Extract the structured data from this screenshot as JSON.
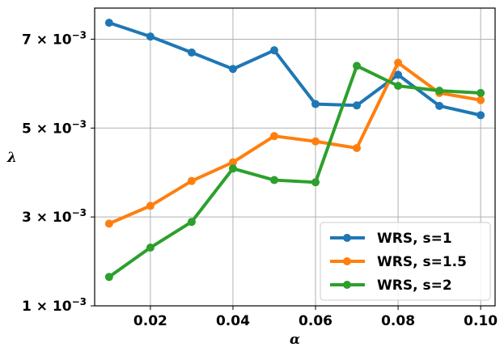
{
  "chart_data": {
    "type": "line",
    "xlabel": "α",
    "ylabel": "λ",
    "xlim": [
      0.0065,
      0.1035
    ],
    "ylim": [
      0.001,
      0.0077
    ],
    "x": [
      0.01,
      0.02,
      0.03,
      0.04,
      0.05,
      0.06,
      0.07,
      0.08,
      0.09,
      0.1
    ],
    "x_tick_values": [
      0.02,
      0.04,
      0.06,
      0.08,
      0.1
    ],
    "x_ticks": [
      "0.02",
      "0.04",
      "0.06",
      "0.08",
      "0.10"
    ],
    "y_tick_values": [
      0.001,
      0.003,
      0.005,
      0.007
    ],
    "y_ticks": [
      {
        "mantissa": "1",
        "times": "×",
        "base": "10",
        "exp": "−3"
      },
      {
        "mantissa": "3",
        "times": "×",
        "base": "10",
        "exp": "−3"
      },
      {
        "mantissa": "5",
        "times": "×",
        "base": "10",
        "exp": "−3"
      },
      {
        "mantissa": "7",
        "times": "×",
        "base": "10",
        "exp": "−3"
      }
    ],
    "grid": true,
    "legend_position": "bottom-right",
    "series": [
      {
        "name": "WRS, s=1",
        "color": "#1f77b4",
        "values": [
          0.00737,
          0.00706,
          0.0067,
          0.00633,
          0.00675,
          0.00554,
          0.00551,
          0.0062,
          0.0055,
          0.00529
        ]
      },
      {
        "name": "WRS, s=1.5",
        "color": "#ff7f0e",
        "values": [
          0.00285,
          0.00325,
          0.00381,
          0.00423,
          0.00482,
          0.0047,
          0.00455,
          0.00647,
          0.00579,
          0.00563
        ]
      },
      {
        "name": "WRS, s=2",
        "color": "#2ca02c",
        "values": [
          0.00165,
          0.00231,
          0.00289,
          0.00409,
          0.00383,
          0.00378,
          0.0064,
          0.00595,
          0.00584,
          0.00579
        ]
      }
    ]
  }
}
